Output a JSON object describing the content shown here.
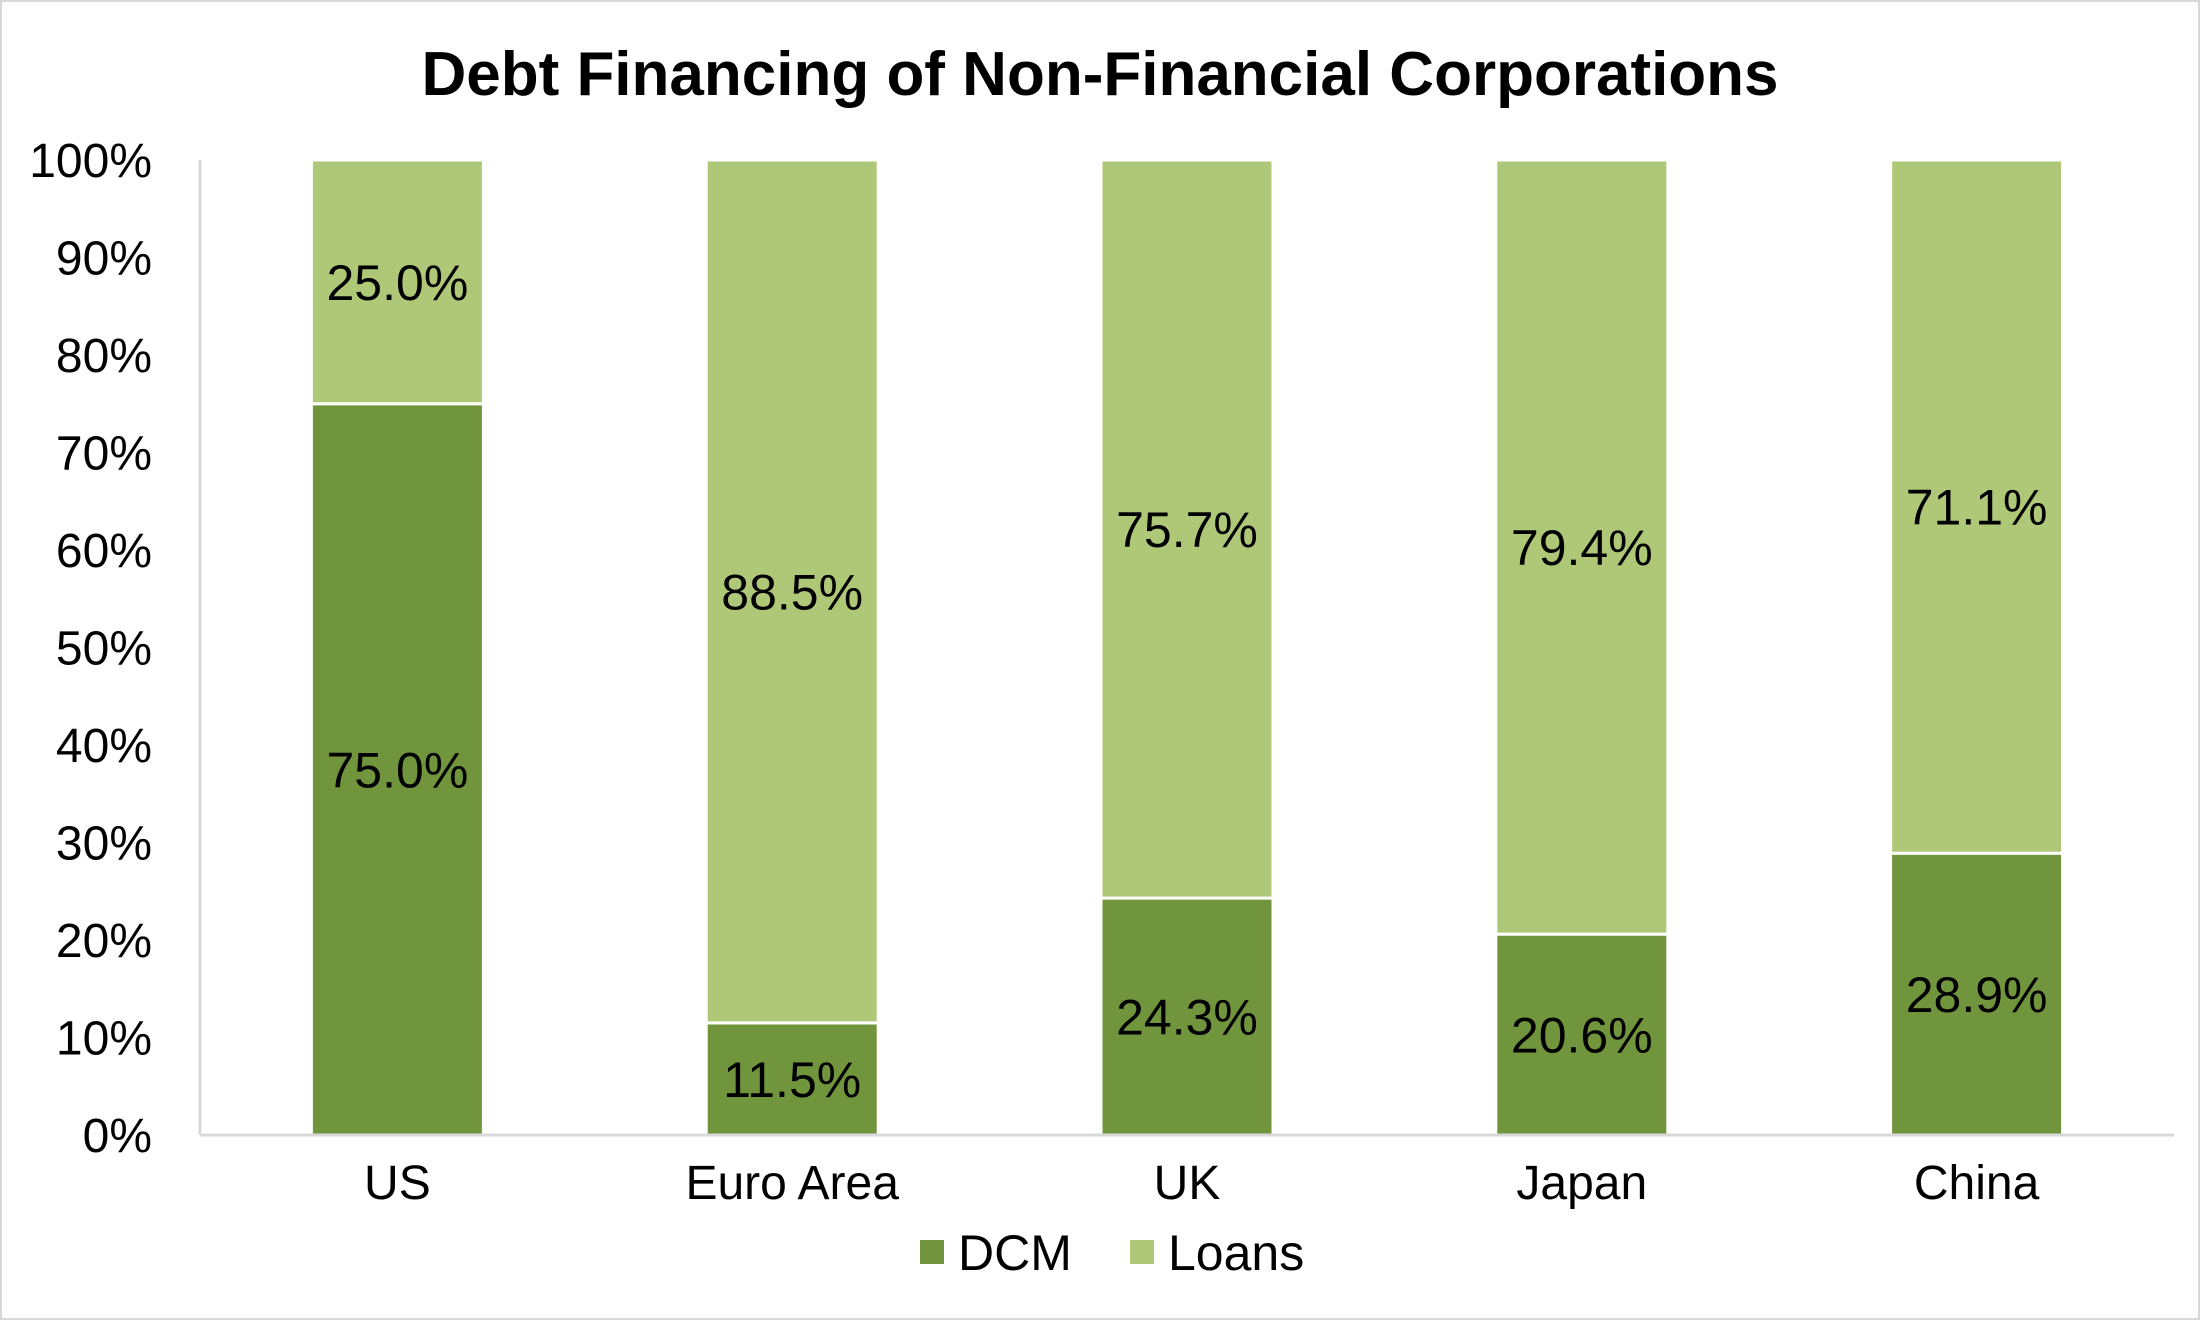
{
  "chart_data": {
    "type": "bar",
    "stacked": true,
    "title": "Debt Financing of Non-Financial Corporations",
    "categories": [
      "US",
      "Euro Area",
      "UK",
      "Japan",
      "China"
    ],
    "series": [
      {
        "name": "DCM",
        "color": "#70953c",
        "values": [
          75.0,
          11.5,
          24.3,
          20.6,
          28.9
        ],
        "labels": [
          "75.0%",
          "11.5%",
          "24.3%",
          "20.6%",
          "28.9%"
        ]
      },
      {
        "name": "Loans",
        "color": "#afc878",
        "values": [
          25.0,
          88.5,
          75.7,
          79.4,
          71.1
        ],
        "labels": [
          "25.0%",
          "88.5%",
          "75.7%",
          "79.4%",
          "71.1%"
        ]
      }
    ],
    "y_ticks": [
      "0%",
      "10%",
      "20%",
      "30%",
      "40%",
      "50%",
      "60%",
      "70%",
      "80%",
      "90%",
      "100%"
    ],
    "ylim": [
      0,
      100
    ],
    "grid": false,
    "legend_position": "bottom",
    "axis_color": "#d9d9d9"
  }
}
